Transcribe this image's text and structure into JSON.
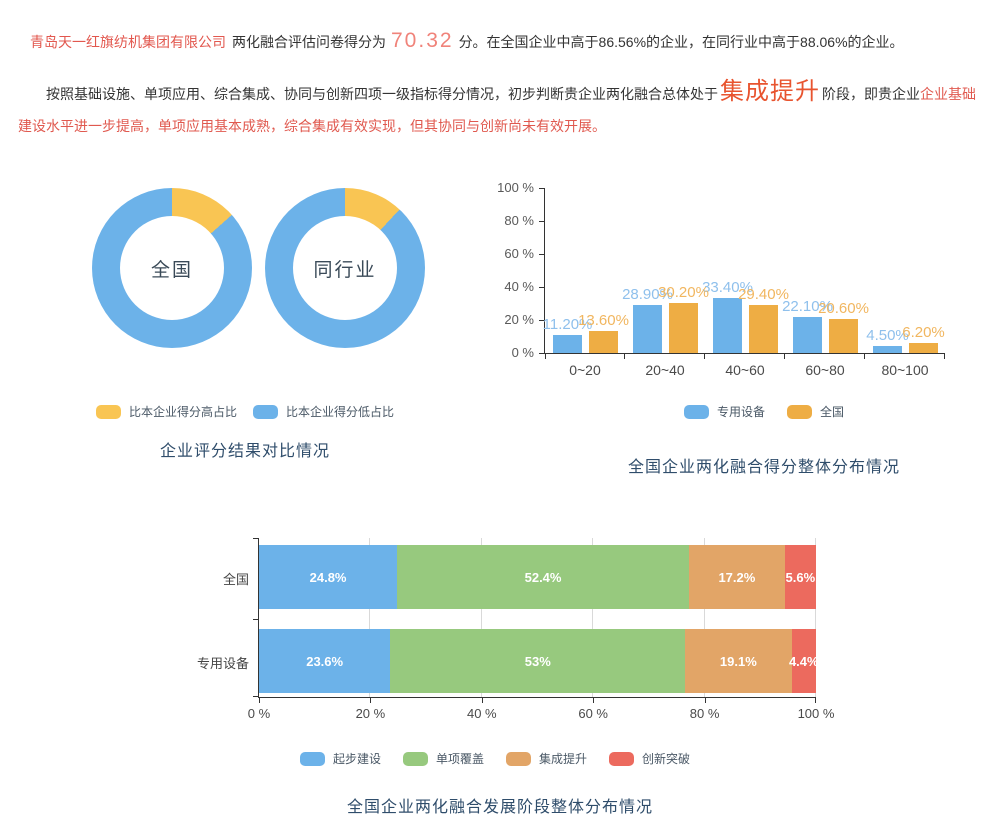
{
  "summary": {
    "company": "青岛天一红旗纺机集团有限公司",
    "score_prefix": "两化融合评估问卷得分为",
    "score": "70.32",
    "score_suffix": "分。在全国企业中高于86.56%的企业，在同行业中高于88.06%的企业。"
  },
  "analysis": {
    "lead": "按照基础设施、单项应用、综合集成、协同与创新四项一级指标得分情况，初步判断贵企业两化融合总体处于",
    "stage": "集成提升",
    "mid": "阶段，即贵企业",
    "tail": "企业基础建设水平进一步提高，单项应用基本成熟，综合集成有效实现，但其协同与创新尚未有效开展。"
  },
  "palette": {
    "company_text": "#e2574e",
    "score_text": "#f0837a",
    "stage_text": "#e8542f",
    "tail_text": "#e0594f",
    "title_text": "#2f4d6b",
    "blue": "#6cb2e9",
    "yellow": "#f9c553",
    "orange_bar": "#eead44",
    "green": "#97c97e",
    "orange_stack": "#e2a567",
    "red": "#ec6a5e"
  },
  "chart_data": [
    {
      "type": "pie",
      "variant": "donut-pair",
      "title": "企业评分结果对比情况",
      "legend_position": "bottom",
      "legend_items": [
        {
          "label": "比本企业得分高占比",
          "color": "#f9c553"
        },
        {
          "label": "比本企业得分低占比",
          "color": "#6cb2e9"
        }
      ],
      "donuts": [
        {
          "label": "全国",
          "segments": [
            {
              "name": "比本企业得分高占比",
              "value": 13.44,
              "color": "#f9c553"
            },
            {
              "name": "比本企业得分低占比",
              "value": 86.56,
              "color": "#6cb2e9"
            }
          ]
        },
        {
          "label": "同行业",
          "segments": [
            {
              "name": "比本企业得分高占比",
              "value": 11.94,
              "color": "#f9c553"
            },
            {
              "name": "比本企业得分低占比",
              "value": 88.06,
              "color": "#6cb2e9"
            }
          ]
        }
      ]
    },
    {
      "type": "bar",
      "title": "全国企业两化融合得分整体分布情况",
      "categories": [
        "0~20",
        "20~40",
        "40~60",
        "60~80",
        "80~100"
      ],
      "series": [
        {
          "name": "专用设备",
          "color": "#6cb2e9",
          "label_color": "#8fc0ec",
          "values": [
            11.2,
            28.9,
            33.4,
            22.1,
            4.5
          ],
          "labels": [
            "11.20%",
            "28.90%",
            "33.40%",
            "22.10%",
            "4.50%"
          ]
        },
        {
          "name": "全国",
          "color": "#eead44",
          "label_color": "#f1b65f",
          "values": [
            13.6,
            30.2,
            29.4,
            20.6,
            6.2
          ],
          "labels": [
            "13.60%",
            "30.20%",
            "29.40%",
            "20.60%",
            "6.20%"
          ]
        }
      ],
      "yticks": [
        "0 %",
        "20 %",
        "40 %",
        "60 %",
        "80 %",
        "100 %"
      ],
      "ylim": [
        0,
        100
      ],
      "grid": false,
      "legend_position": "bottom"
    },
    {
      "type": "bar",
      "variant": "horizontal-stacked",
      "title": "全国企业两化融合发展阶段整体分布情况",
      "categories": [
        "全国",
        "专用设备"
      ],
      "series": [
        {
          "name": "起步建设",
          "color": "#6cb2e9",
          "values": [
            24.8,
            23.6
          ],
          "labels": [
            "24.8%",
            "23.6%"
          ]
        },
        {
          "name": "单项覆盖",
          "color": "#97c97e",
          "values": [
            52.4,
            53.0
          ],
          "labels": [
            "52.4%",
            "53%"
          ]
        },
        {
          "name": "集成提升",
          "color": "#e2a567",
          "values": [
            17.2,
            19.1
          ],
          "labels": [
            "17.2%",
            "19.1%"
          ]
        },
        {
          "name": "创新突破",
          "color": "#ec6a5e",
          "values": [
            5.6,
            4.4
          ],
          "labels": [
            "5.6%",
            "4.4%"
          ]
        }
      ],
      "xticks": [
        "0 %",
        "20 %",
        "40 %",
        "60 %",
        "80 %",
        "100 %"
      ],
      "xlim": [
        0,
        100
      ],
      "grid": true,
      "legend_position": "bottom"
    }
  ]
}
